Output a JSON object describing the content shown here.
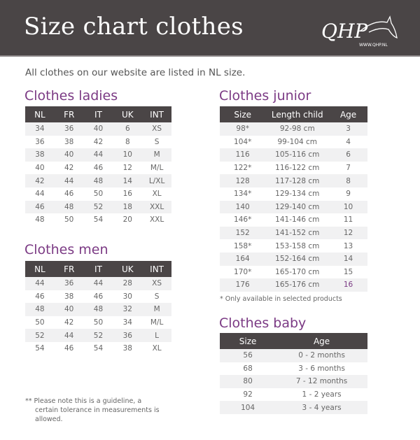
{
  "header": {
    "title": "Size chart clothes",
    "logo_text": "QHP",
    "logo_url": "WWW.QHP.NL"
  },
  "intro": "All clothes on our website are listed in NL size.",
  "ladies": {
    "title": "Clothes ladies",
    "columns": [
      "NL",
      "FR",
      "IT",
      "UK",
      "INT"
    ],
    "rows": [
      [
        "34",
        "36",
        "40",
        "6",
        "XS"
      ],
      [
        "36",
        "38",
        "42",
        "8",
        "S"
      ],
      [
        "38",
        "40",
        "44",
        "10",
        "M"
      ],
      [
        "40",
        "42",
        "46",
        "12",
        "M/L"
      ],
      [
        "42",
        "44",
        "48",
        "14",
        "L/XL"
      ],
      [
        "44",
        "46",
        "50",
        "16",
        "XL"
      ],
      [
        "46",
        "48",
        "52",
        "18",
        "XXL"
      ],
      [
        "48",
        "50",
        "54",
        "20",
        "XXL"
      ]
    ]
  },
  "men": {
    "title": "Clothes men",
    "columns": [
      "NL",
      "FR",
      "IT",
      "UK",
      "INT"
    ],
    "rows": [
      [
        "44",
        "36",
        "44",
        "28",
        "XS"
      ],
      [
        "46",
        "38",
        "46",
        "30",
        "S"
      ],
      [
        "48",
        "40",
        "48",
        "32",
        "M"
      ],
      [
        "50",
        "42",
        "50",
        "34",
        "M/L"
      ],
      [
        "52",
        "44",
        "52",
        "36",
        "L"
      ],
      [
        "54",
        "46",
        "54",
        "38",
        "XL"
      ]
    ]
  },
  "junior": {
    "title": "Clothes junior",
    "columns": [
      "Size",
      "Length child",
      "Age"
    ],
    "rows": [
      [
        "98*",
        "92-98 cm",
        "3"
      ],
      [
        "104*",
        "99-104 cm",
        "4"
      ],
      [
        "116",
        "105-116 cm",
        "6"
      ],
      [
        "122*",
        "116-122 cm",
        "7"
      ],
      [
        "128",
        "117-128 cm",
        "8"
      ],
      [
        "134*",
        "129-134 cm",
        "9"
      ],
      [
        "140",
        "129-140 cm",
        "10"
      ],
      [
        "146*",
        "141-146 cm",
        "11"
      ],
      [
        "152",
        "141-152 cm",
        "12"
      ],
      [
        "158*",
        "153-158 cm",
        "13"
      ],
      [
        "164",
        "152-164 cm",
        "14"
      ],
      [
        "170*",
        "165-170 cm",
        "15"
      ],
      [
        "176",
        "165-176 cm",
        "16"
      ]
    ],
    "note": "* Only available in selected products"
  },
  "baby": {
    "title": "Clothes baby",
    "columns": [
      "Size",
      "Age"
    ],
    "rows": [
      [
        "56",
        "0 - 2 months"
      ],
      [
        "68",
        "3 - 6 months"
      ],
      [
        "80",
        "7 - 12 months"
      ],
      [
        "92",
        "1 - 2 years"
      ],
      [
        "104",
        "3 - 4 years"
      ]
    ]
  },
  "footnote": "** Please note this is a guideline, a certain tolerance in measurements is allowed.",
  "colors": {
    "header_bg": "#4a4546",
    "accent": "#7b3a84",
    "row_alt": "#f1f1f2"
  }
}
